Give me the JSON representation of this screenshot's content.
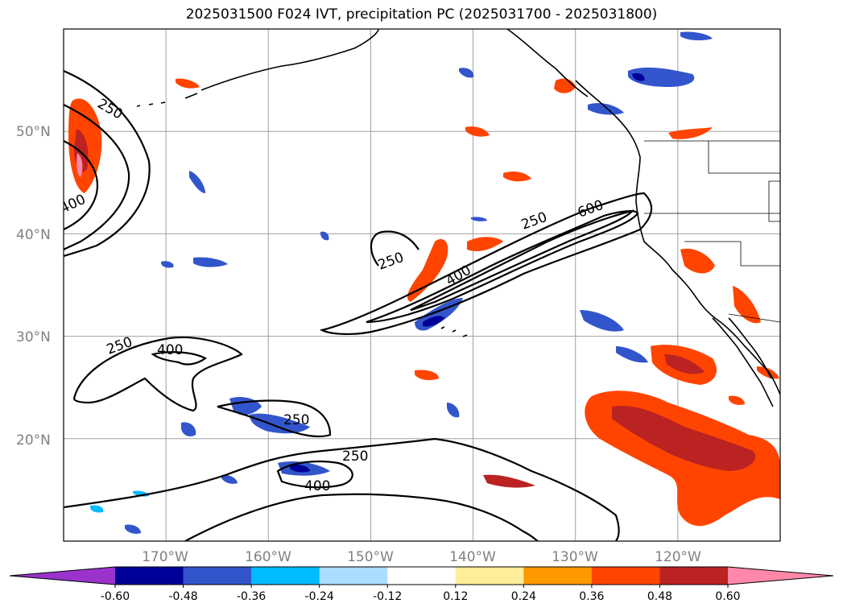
{
  "title": "2025031500 F024 IVT, precipitation PC (2025031700 - 2025031800)",
  "map": {
    "lon_range": [
      -180,
      -110
    ],
    "lat_range": [
      10,
      60
    ],
    "lat_ticks": [
      {
        "value": 50,
        "label": "50°N"
      },
      {
        "value": 40,
        "label": "40°N"
      },
      {
        "value": 30,
        "label": "30°N"
      },
      {
        "value": 20,
        "label": "20°N"
      }
    ],
    "lon_ticks": [
      {
        "value": -170,
        "label": "170°W"
      },
      {
        "value": -160,
        "label": "160°W"
      },
      {
        "value": -150,
        "label": "150°W"
      },
      {
        "value": -140,
        "label": "140°W"
      },
      {
        "value": -130,
        "label": "130°W"
      },
      {
        "value": -120,
        "label": "120°W"
      }
    ],
    "ivt_contour_labels": [
      "250",
      "400",
      "600",
      "250",
      "400",
      "250",
      "400",
      "250",
      "250",
      "250",
      "400"
    ]
  },
  "colorbar": {
    "ticks": [
      "-0.60",
      "-0.48",
      "-0.36",
      "-0.24",
      "-0.12",
      "0.12",
      "0.24",
      "0.36",
      "0.48",
      "0.60"
    ],
    "colors": [
      "#9933cc",
      "#000099",
      "#3355cc",
      "#00bbff",
      "#aaddff",
      "#ffffff",
      "#ffee99",
      "#ff9900",
      "#ff4400",
      "#bb2222",
      "#ff88aa"
    ]
  }
}
